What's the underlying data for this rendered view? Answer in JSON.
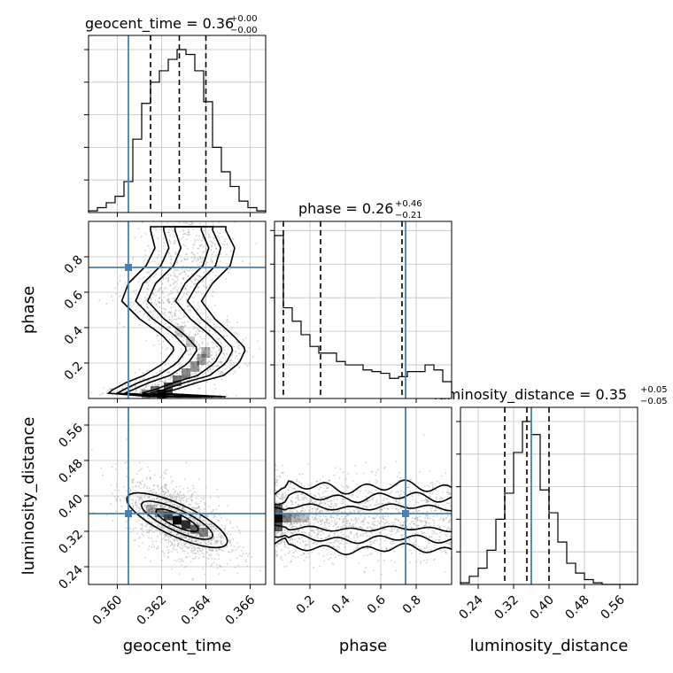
{
  "chart_data": {
    "type": "corner",
    "parameters": [
      "geocent_time",
      "phase",
      "luminosity_distance"
    ],
    "truths": {
      "geocent_time": 0.3605,
      "phase": 0.74,
      "luminosity_distance": 0.36
    },
    "colors": {
      "truth": "#4682b4",
      "line": "#000000",
      "grid": "#c0c0c0",
      "scatter": "#9a9a9a"
    },
    "titles": [
      {
        "param": "geocent_time",
        "main": "geocent_time = 0.36",
        "plus": "+0.00",
        "minus": "−0.00"
      },
      {
        "param": "phase",
        "main": "phase = 0.26",
        "plus": "+0.46",
        "minus": "−0.21"
      },
      {
        "param": "luminosity_distance",
        "main": "luminosity_distance = 0.35",
        "plus": "+0.05",
        "minus": "−0.05"
      }
    ],
    "axis_labels": {
      "x": [
        "geocent_time",
        "phase",
        "luminosity_distance"
      ],
      "y": [
        "phase",
        "luminosity_distance"
      ]
    },
    "axes": {
      "geocent_time": {
        "range": [
          0.3587,
          0.3667
        ],
        "ticks": [
          0.36,
          0.362,
          0.364,
          0.366
        ],
        "tick_labels": [
          "0.360",
          "0.362",
          "0.364",
          "0.366"
        ]
      },
      "phase": {
        "range": [
          0.0,
          1.0
        ],
        "ticks": [
          0.2,
          0.4,
          0.6,
          0.8
        ],
        "tick_labels": [
          "0.2",
          "0.4",
          "0.6",
          "0.8"
        ]
      },
      "luminosity_distance": {
        "range": [
          0.2,
          0.6
        ],
        "ticks": [
          0.24,
          0.32,
          0.4,
          0.48,
          0.56
        ],
        "tick_labels": [
          "0.24",
          "0.32",
          "0.40",
          "0.48",
          "0.56"
        ]
      }
    },
    "histograms": {
      "geocent_time": {
        "edges": [
          0.3587,
          0.3591,
          0.3595,
          0.3599,
          0.3603,
          0.3607,
          0.3611,
          0.3615,
          0.3619,
          0.3623,
          0.3627,
          0.3631,
          0.3635,
          0.3639,
          0.3643,
          0.3647,
          0.3651,
          0.3655,
          0.3659,
          0.3663,
          0.3667
        ],
        "counts": [
          0.01,
          0.03,
          0.06,
          0.1,
          0.19,
          0.45,
          0.67,
          0.8,
          0.87,
          0.94,
          1.0,
          0.97,
          0.87,
          0.68,
          0.4,
          0.25,
          0.16,
          0.07,
          0.03,
          0.01
        ],
        "quantiles": [
          0.3615,
          0.3628,
          0.364
        ]
      },
      "phase": {
        "edges": [
          0.0,
          0.05,
          0.1,
          0.15,
          0.2,
          0.25,
          0.3,
          0.35,
          0.4,
          0.45,
          0.5,
          0.55,
          0.6,
          0.65,
          0.7,
          0.75,
          0.8,
          0.85,
          0.9,
          0.95,
          1.0
        ],
        "counts": [
          0.97,
          0.54,
          0.46,
          0.38,
          0.31,
          0.27,
          0.27,
          0.22,
          0.2,
          0.2,
          0.17,
          0.16,
          0.15,
          0.12,
          0.13,
          0.16,
          0.16,
          0.2,
          0.17,
          0.1
        ],
        "quantiles": [
          0.05,
          0.26,
          0.72
        ]
      },
      "luminosity_distance": {
        "edges": [
          0.2,
          0.22,
          0.24,
          0.26,
          0.28,
          0.3,
          0.32,
          0.34,
          0.36,
          0.38,
          0.4,
          0.42,
          0.44,
          0.46,
          0.48,
          0.5,
          0.52,
          0.54,
          0.56,
          0.58,
          0.6
        ],
        "counts": [
          0.01,
          0.05,
          0.1,
          0.21,
          0.4,
          0.56,
          0.81,
          1.0,
          0.92,
          0.58,
          0.44,
          0.26,
          0.13,
          0.07,
          0.03,
          0.01,
          0.0,
          0.0,
          0.0,
          0.0
        ],
        "quantiles": [
          0.3,
          0.35,
          0.4
        ]
      }
    },
    "joint": {
      "phase_vs_geocent_time": {
        "path": [
          [
            0.3605,
            0.02
          ],
          [
            0.3612,
            0.05
          ],
          [
            0.362,
            0.09
          ],
          [
            0.363,
            0.13
          ],
          [
            0.3638,
            0.2
          ],
          [
            0.3642,
            0.28
          ],
          [
            0.3636,
            0.36
          ],
          [
            0.3627,
            0.45
          ],
          [
            0.362,
            0.55
          ],
          [
            0.3624,
            0.65
          ],
          [
            0.3632,
            0.75
          ],
          [
            0.3635,
            0.85
          ],
          [
            0.3632,
            0.95
          ]
        ],
        "widths": [
          0.001,
          0.0014,
          0.0016,
          0.0018,
          0.0017,
          0.0016,
          0.0016,
          0.0017,
          0.0018,
          0.0019,
          0.0019,
          0.0018,
          0.0017
        ],
        "scatter_spread": 0.0011
      },
      "luminosity_distance_vs_geocent_time": {
        "center": [
          0.3627,
          0.345
        ],
        "cov": [
          [
            9e-07,
            -1.8e-05
          ],
          [
            -1.8e-05,
            0.0014
          ]
        ],
        "scatter_spread": 1.0
      },
      "luminosity_distance_vs_phase": {
        "center_ld": 0.35,
        "ld_spread": 0.035,
        "peak_phase": 0.02
      }
    }
  }
}
